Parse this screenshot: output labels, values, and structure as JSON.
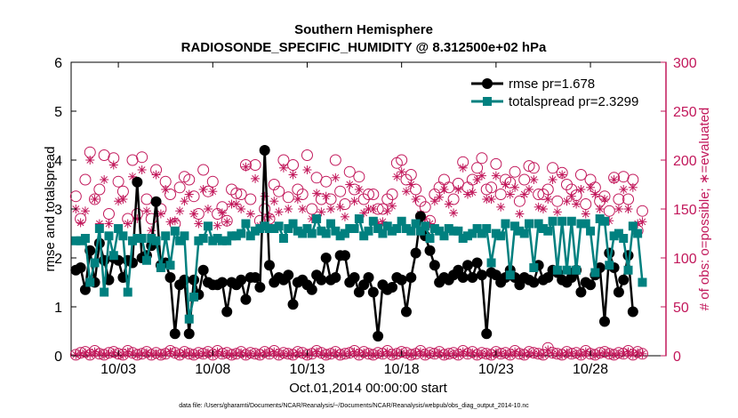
{
  "figure": {
    "title_line1": "Southern Hemisphere",
    "title_line2": "RADIOSONDE_SPECIFIC_HUMIDITY @ 8.312500e+02 hPa",
    "xlabel": "Oct.01,2014 00:00:00 start",
    "footnote": "data file: /Users/gharamti/Documents/NCAR/Reanalysis/~/Documents/NCAR/Reanalysis/webpub/obs_diag_output_2014-10.nc"
  },
  "chart_data": {
    "type": "line",
    "title": "Southern Hemisphere\nRADIOSONDE_SPECIFIC_HUMIDITY @ 8.312500e+02 hPa",
    "xlabel": "Oct.01,2014 00:00:00 start",
    "ylabel": "rmse and totalspread",
    "ylabel_right": "# of obs: o=possible; ∗=evaluated",
    "xlim": [
      0,
      31.5
    ],
    "ylim": [
      0,
      6
    ],
    "ylim_right": [
      0,
      300
    ],
    "x_ticks": [
      2.5,
      7.5,
      12.5,
      17.5,
      22.5,
      27.5
    ],
    "x_tick_labels": [
      "10/03",
      "10/08",
      "10/13",
      "10/18",
      "10/23",
      "10/28"
    ],
    "y_ticks": [
      0,
      1,
      2,
      3,
      4,
      5,
      6
    ],
    "y_tick_labels": [
      "0",
      "1",
      "2",
      "3",
      "4",
      "5",
      "6"
    ],
    "y_ticks_right": [
      0,
      50,
      100,
      150,
      200,
      250,
      300
    ],
    "y_tick_labels_right": [
      "0",
      "50",
      "100",
      "150",
      "200",
      "250",
      "300"
    ],
    "legend_position": "top-right",
    "x_start": 0.25,
    "x_step": 0.25,
    "colors": {
      "rmse": "#000000",
      "spread": "#00807f",
      "obs": "#c2185b"
    },
    "series": [
      {
        "name": "rmse",
        "legend_label": "rmse pr=1.678",
        "marker": "circle",
        "values": [
          1.75,
          1.8,
          1.35,
          2.15,
          1.5,
          2.3,
          1.95,
          1.55,
          2.0,
          1.95,
          1.6,
          1.95,
          1.9,
          3.55,
          2.0,
          2.05,
          2.25,
          3.15,
          1.85,
          1.9,
          1.6,
          0.45,
          1.45,
          1.55,
          0.45,
          1.55,
          1.25,
          1.75,
          1.5,
          1.45,
          1.45,
          1.5,
          0.9,
          1.5,
          1.45,
          1.55,
          1.15,
          1.6,
          1.6,
          1.4,
          4.2,
          1.85,
          1.5,
          1.6,
          1.55,
          1.65,
          1.05,
          1.5,
          1.55,
          1.45,
          1.35,
          1.65,
          1.55,
          2.0,
          1.55,
          1.6,
          2.05,
          2.05,
          1.5,
          1.6,
          1.3,
          1.45,
          1.6,
          1.3,
          0.4,
          1.45,
          1.35,
          1.4,
          1.6,
          1.55,
          0.9,
          1.6,
          2.1,
          2.85,
          2.45,
          2.15,
          1.85,
          1.5,
          1.6,
          1.55,
          1.65,
          1.75,
          1.6,
          1.85,
          1.6,
          1.9,
          1.65,
          0.45,
          1.7,
          1.65,
          1.5,
          1.6,
          1.75,
          1.6,
          1.45,
          1.6,
          1.55,
          1.5,
          1.85,
          1.55,
          1.6,
          1.75,
          1.7,
          1.55,
          1.5,
          1.6,
          1.75,
          1.3,
          1.5,
          1.45,
          1.65,
          1.8,
          0.7,
          2.1,
          1.8,
          1.3,
          1.55,
          2.05,
          0.9
        ]
      },
      {
        "name": "totalspread",
        "legend_label": "totalspread pr=2.3299",
        "marker": "square",
        "values": [
          2.35,
          2.35,
          2.4,
          1.5,
          1.9,
          2.6,
          1.3,
          2.45,
          2.05,
          2.6,
          2.45,
          1.3,
          2.35,
          2.4,
          2.4,
          1.95,
          2.4,
          2.35,
          1.8,
          2.45,
          1.85,
          2.55,
          2.35,
          2.45,
          0.75,
          1.2,
          2.35,
          2.4,
          2.65,
          2.35,
          2.4,
          2.35,
          2.35,
          2.45,
          2.45,
          2.5,
          2.7,
          2.45,
          2.55,
          2.6,
          2.65,
          2.6,
          2.6,
          2.65,
          2.4,
          2.6,
          2.7,
          2.55,
          2.5,
          2.6,
          2.5,
          2.8,
          2.55,
          2.5,
          2.7,
          2.55,
          2.45,
          2.5,
          2.6,
          2.6,
          2.8,
          2.45,
          2.55,
          2.75,
          2.6,
          2.5,
          2.65,
          2.55,
          2.6,
          2.75,
          2.6,
          2.55,
          2.7,
          2.55,
          2.65,
          2.4,
          2.6,
          2.55,
          2.45,
          2.6,
          2.55,
          2.55,
          2.4,
          2.45,
          2.5,
          2.6,
          2.5,
          2.6,
          1.9,
          2.5,
          2.45,
          2.7,
          1.65,
          2.65,
          2.55,
          2.5,
          2.7,
          1.8,
          2.7,
          2.6,
          2.55,
          2.75,
          1.75,
          2.75,
          1.75,
          2.75,
          1.75,
          2.7,
          2.7,
          2.55,
          1.7,
          2.8,
          2.75,
          1.85,
          2.45,
          2.5,
          2.4,
          1.75,
          2.65,
          2.5,
          1.5
        ]
      },
      {
        "name": "possible",
        "marker": "open-circle",
        "values_upper": [
          163,
          140,
          180,
          208,
          160,
          170,
          205,
          145,
          202,
          178,
          168,
          140,
          200,
          145,
          203,
          160,
          140,
          190,
          150,
          178,
          165,
          135,
          172,
          183,
          180,
          163,
          145,
          190,
          168,
          178,
          145,
          152,
          138,
          170,
          166,
          165,
          195,
          160,
          195,
          138,
          150,
          140,
          175,
          168,
          200,
          162,
          195,
          170,
          165,
          205,
          150,
          182,
          160,
          178,
          160,
          200,
          168,
          155,
          188,
          170,
          183,
          160,
          165,
          165,
          150,
          150,
          160,
          165,
          197,
          200,
          180,
          185,
          170,
          158,
          152,
          138,
          165,
          172,
          180,
          172,
          160,
          176,
          198,
          172,
          180,
          192,
          202,
          170,
          172,
          196,
          165,
          180,
          177,
          188,
          158,
          180,
          194,
          192,
          165,
          165,
          170,
          192,
          158,
          187,
          175,
          170,
          164,
          185,
          155,
          180,
          172,
          158,
          163,
          148,
          182,
          160,
          183,
          160,
          180,
          128,
          148
        ],
        "values_lower": [
          1,
          3,
          4,
          1,
          5,
          2,
          1,
          3,
          4,
          2,
          1,
          5,
          3,
          1,
          2,
          4,
          1,
          3,
          1,
          2,
          5,
          3,
          1,
          4,
          2,
          1,
          3,
          2,
          4,
          1,
          5,
          2,
          3,
          1,
          2,
          4,
          1,
          3,
          2,
          1,
          4,
          2,
          5,
          1,
          3,
          2,
          1,
          4,
          3,
          1,
          2,
          5,
          3,
          1,
          2,
          4,
          1,
          2,
          3,
          5,
          1,
          4,
          2,
          1,
          3,
          2,
          5,
          1,
          2,
          4,
          3,
          1,
          2,
          5,
          1,
          3,
          2,
          4,
          1,
          2,
          3,
          1,
          5,
          2,
          4,
          1,
          3,
          2,
          1,
          4,
          2,
          3,
          1,
          5,
          2,
          1,
          4,
          3,
          2,
          1,
          8,
          3,
          2,
          1,
          4,
          2,
          3,
          1,
          5,
          2,
          1,
          3,
          4,
          2,
          1,
          3,
          2,
          5,
          1,
          4,
          2
        ]
      },
      {
        "name": "evaluated",
        "marker": "asterisk",
        "values_upper": [
          150,
          136,
          148,
          200,
          160,
          135,
          180,
          135,
          195,
          158,
          160,
          135,
          183,
          140,
          190,
          148,
          128,
          185,
          145,
          170,
          137,
          138,
          148,
          158,
          165,
          145,
          135,
          170,
          150,
          168,
          133,
          146,
          137,
          155,
          155,
          150,
          193,
          145,
          181,
          133,
          163,
          142,
          158,
          147,
          192,
          150,
          185,
          160,
          150,
          190,
          140,
          166,
          147,
          163,
          150,
          182,
          152,
          142,
          175,
          158,
          170,
          146,
          150,
          150,
          135,
          137,
          148,
          153,
          183,
          188,
          168,
          175,
          160,
          145,
          140,
          135,
          158,
          162,
          170,
          155,
          146,
          170,
          192,
          165,
          167,
          180,
          184,
          160,
          160,
          184,
          152,
          175,
          165,
          172,
          145,
          165,
          170,
          180,
          152,
          150,
          160,
          180,
          147,
          185,
          158,
          163,
          155,
          170,
          145,
          172,
          165,
          150,
          160,
          138,
          180,
          150,
          170,
          150,
          172,
          135,
          137
        ],
        "values_lower": [
          1,
          2,
          3,
          1,
          4,
          2,
          1,
          2,
          3,
          1,
          1,
          4,
          2,
          1,
          2,
          3,
          1,
          2,
          1,
          2,
          4,
          2,
          1,
          3,
          2,
          1,
          2,
          2,
          3,
          1,
          4,
          2,
          2,
          1,
          2,
          3,
          1,
          2,
          2,
          1,
          3,
          2,
          4,
          1,
          2,
          2,
          1,
          3,
          2,
          1,
          2,
          4,
          2,
          1,
          2,
          3,
          1,
          2,
          2,
          4,
          1,
          3,
          2,
          1,
          2,
          2,
          4,
          1,
          2,
          3,
          2,
          1,
          2,
          4,
          1,
          2,
          2,
          3,
          1,
          2,
          2,
          1,
          4,
          2,
          3,
          1,
          2,
          2,
          1,
          3,
          2,
          2,
          1,
          4,
          2,
          1,
          3,
          2,
          2,
          1,
          6,
          2,
          2,
          1,
          3,
          2,
          2,
          1,
          4,
          2,
          1,
          2,
          3,
          2,
          1,
          2,
          2,
          4,
          1,
          3,
          2
        ]
      }
    ]
  }
}
